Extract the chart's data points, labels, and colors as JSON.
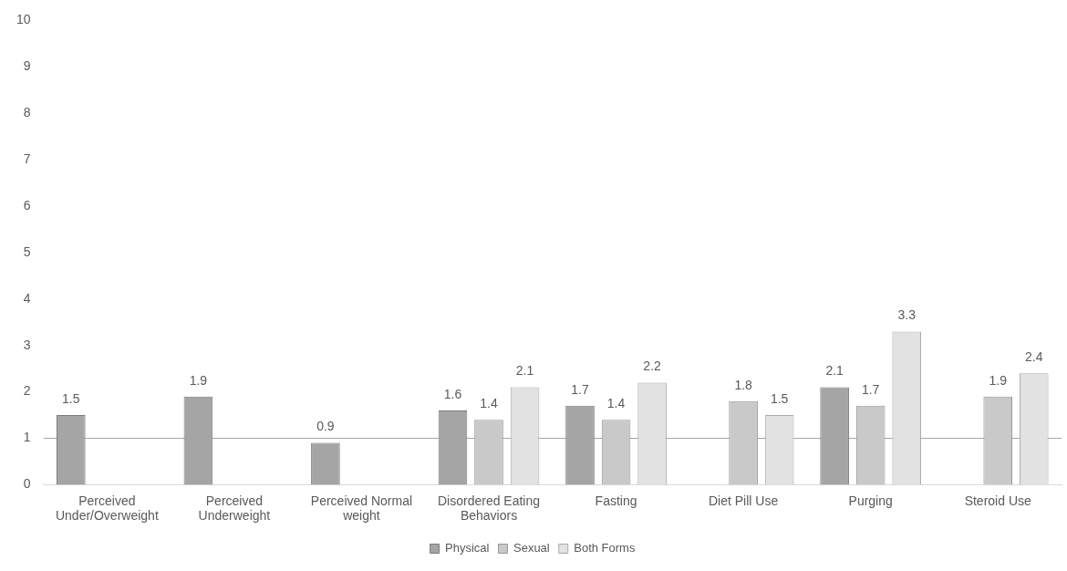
{
  "chart_data": {
    "type": "bar",
    "categories": [
      "Perceived Under/Overweight",
      "Perceived Underweight",
      "Perceived Normal weight",
      "Disordered Eating Behaviors",
      "Fasting",
      "Diet Pill Use",
      "Purging",
      "Steroid Use"
    ],
    "series": [
      {
        "name": "Physical",
        "color": "#a5a5a5",
        "values": [
          1.5,
          1.9,
          0.9,
          1.6,
          1.7,
          null,
          2.1,
          null
        ]
      },
      {
        "name": "Sexual",
        "color": "#c9c9c9",
        "values": [
          null,
          null,
          null,
          1.4,
          1.4,
          1.8,
          1.7,
          1.9
        ]
      },
      {
        "name": "Both Forms",
        "color": "#e2e2e2",
        "values": [
          null,
          null,
          null,
          2.1,
          2.2,
          1.5,
          3.3,
          2.4
        ]
      }
    ],
    "ylim": [
      0,
      10
    ],
    "yticks": [
      0,
      1,
      2,
      3,
      4,
      5,
      6,
      7,
      8,
      9,
      10
    ],
    "ref_lines": [
      {
        "axis": "y",
        "value": 1,
        "color": "#a6a6a6"
      }
    ],
    "data_labels": true,
    "grid": false,
    "legend": "bottom"
  }
}
